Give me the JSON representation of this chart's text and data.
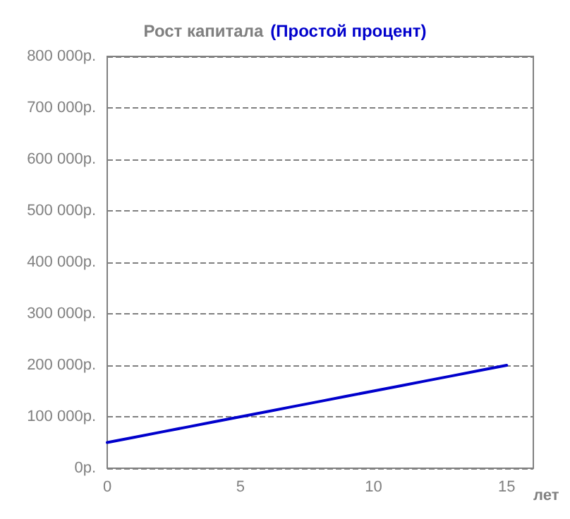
{
  "chart_data": {
    "type": "line",
    "title": "Рост капитала",
    "subtitle": "(Простой процент)",
    "xlabel": "лет",
    "x": [
      0,
      1,
      2,
      3,
      4,
      5,
      6,
      7,
      8,
      9,
      10,
      11,
      12,
      13,
      14,
      15
    ],
    "series": [
      {
        "color": "#0000cc",
        "values": [
          50000,
          60000,
          70000,
          80000,
          90000,
          100000,
          110000,
          120000,
          130000,
          140000,
          150000,
          160000,
          170000,
          180000,
          190000,
          200000
        ]
      }
    ],
    "xlim": [
      0,
      16
    ],
    "xticks": [
      0,
      5,
      10,
      15
    ],
    "ylim": [
      0,
      800000
    ],
    "yticks": [
      {
        "value": 0,
        "label": "0р."
      },
      {
        "value": 100000,
        "label": "100 000р."
      },
      {
        "value": 200000,
        "label": "200 000р."
      },
      {
        "value": 300000,
        "label": "300 000р."
      },
      {
        "value": 400000,
        "label": "400 000р."
      },
      {
        "value": 500000,
        "label": "500 000р."
      },
      {
        "value": 600000,
        "label": "600 000р."
      },
      {
        "value": 700000,
        "label": "700 000р."
      },
      {
        "value": 800000,
        "label": "800 000р."
      }
    ],
    "grid": "y",
    "marker": "none",
    "line_style": "solid"
  }
}
